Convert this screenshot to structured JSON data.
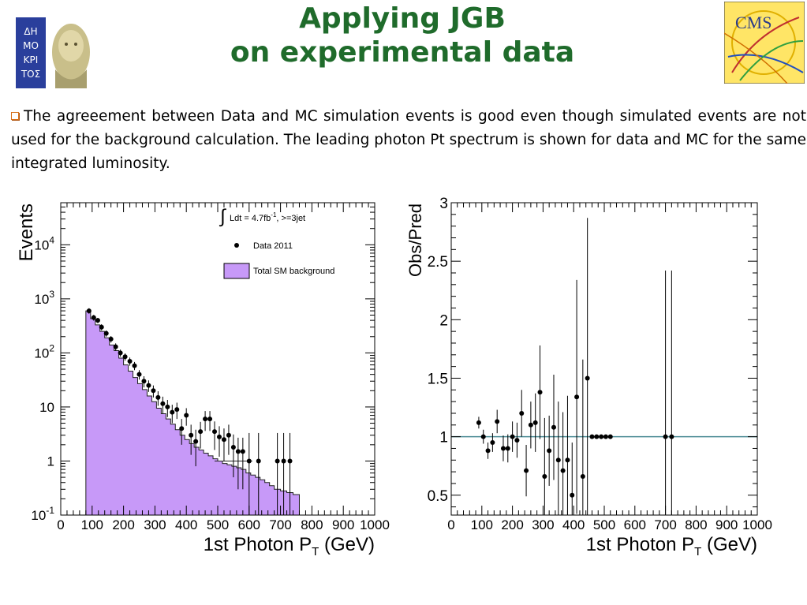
{
  "slide": {
    "title_line1": "Applying JGB",
    "title_line2": "on experimental data",
    "bullet": "The agreeement between Data and MC simulation events is good even though simulated events are not used for the background calculation. The leading photon Pt spectrum is shown for data and MC for the same integrated luminosity.",
    "logo_left_icon": "democritos-logo-icon",
    "logo_right_text": "CMS",
    "title_color": "#1f6b2b",
    "bullet_color": "#d6701a"
  },
  "chart_data": [
    {
      "type": "bar",
      "ylabel": "Events",
      "xlabel": "1st Photon P",
      "xlabel_sub": "T",
      "xlabel_unit": " (GeV)",
      "yscale": "log",
      "xlim": [
        0,
        1000
      ],
      "ylim": [
        0.1,
        60000
      ],
      "x_ticks": [
        "0",
        "100",
        "200",
        "300",
        "400",
        "500",
        "600",
        "700",
        "800",
        "900",
        "1000"
      ],
      "y_ticks": [
        {
          "base": "10",
          "exp": "-1",
          "v": 0.1
        },
        {
          "base": "1",
          "exp": "",
          "v": 1
        },
        {
          "base": "10",
          "exp": "",
          "v": 10
        },
        {
          "base": "10",
          "exp": "2",
          "v": 100
        },
        {
          "base": "10",
          "exp": "3",
          "v": 1000
        },
        {
          "base": "10",
          "exp": "4",
          "v": 10000
        }
      ],
      "legend": {
        "lumi_prefix": "Ldt = 4.7fb",
        "lumi_sup": "-1",
        "lumi_suffix": ", >=3jet",
        "data_label": "Data 2011",
        "bkg_label": "Total SM background"
      },
      "bkg_color": "#c799f8",
      "background_hist": {
        "bin_edges": [
          80,
          95,
          110,
          125,
          140,
          155,
          170,
          185,
          200,
          215,
          230,
          245,
          260,
          275,
          290,
          305,
          320,
          335,
          350,
          365,
          380,
          395,
          410,
          425,
          440,
          455,
          470,
          485,
          500,
          515,
          530,
          545,
          560,
          575,
          590,
          605,
          620,
          635,
          650,
          665,
          680,
          700,
          720,
          740,
          760
        ],
        "values": [
          600,
          430,
          330,
          250,
          190,
          140,
          110,
          80,
          60,
          46,
          35,
          27,
          21,
          16,
          12.5,
          9.5,
          7.5,
          6,
          4.8,
          3.8,
          3,
          2.5,
          2.1,
          1.8,
          1.6,
          1.4,
          1.25,
          1.1,
          1,
          0.9,
          0.85,
          0.8,
          0.75,
          0.7,
          0.6,
          0.55,
          0.5,
          0.45,
          0.4,
          0.35,
          0.3,
          0.28,
          0.26,
          0.24
        ]
      },
      "background_extra": {
        "bin_edges": [
          490,
          510,
          530,
          550,
          570,
          590,
          610,
          630,
          650,
          670,
          690,
          710,
          730,
          750
        ],
        "values": [
          1,
          1,
          1,
          1,
          1,
          1,
          0.1,
          0.1,
          0.1,
          0.1,
          0.1,
          0.1,
          0.1,
          0.1
        ]
      },
      "data_points": {
        "x": [
          90,
          105,
          118,
          130,
          145,
          160,
          175,
          190,
          205,
          220,
          235,
          250,
          265,
          280,
          295,
          310,
          325,
          340,
          355,
          370,
          385,
          400,
          415,
          430,
          445,
          460,
          475,
          490,
          505,
          520,
          535,
          550,
          565,
          580,
          600,
          630,
          690,
          710,
          730
        ],
        "y": [
          600,
          450,
          400,
          300,
          230,
          180,
          130,
          100,
          85,
          70,
          58,
          40,
          30,
          25,
          20,
          15,
          11.5,
          10,
          8,
          9,
          4,
          7,
          3,
          2.3,
          3.5,
          6,
          6,
          3.5,
          2.8,
          2.5,
          3,
          1.8,
          1.5,
          1.5,
          1,
          1,
          1,
          1,
          1
        ],
        "yerr_low": [
          70,
          55,
          45,
          40,
          30,
          25,
          20,
          15,
          13,
          12,
          10,
          8,
          7,
          6,
          5,
          4.5,
          4,
          3.5,
          3,
          3,
          2,
          2.5,
          1.7,
          1.5,
          1.8,
          2.4,
          2.4,
          1.9,
          1.6,
          1.5,
          1.7,
          1.3,
          1.2,
          1.2,
          0.9,
          0.9,
          0.9,
          0.9,
          0.9
        ],
        "yerr_high": [
          70,
          55,
          45,
          40,
          30,
          25,
          20,
          15,
          13,
          12,
          10,
          8,
          7,
          6,
          5,
          4.5,
          4,
          3.5,
          3,
          3,
          2,
          2.5,
          1.7,
          1.5,
          1.8,
          2.4,
          2.4,
          1.9,
          1.6,
          1.5,
          1.7,
          1.3,
          1.2,
          1.2,
          2.3,
          2.3,
          2.3,
          2.3,
          2.3
        ]
      }
    },
    {
      "type": "scatter",
      "ylabel": "Obs/Pred",
      "xlabel": "1st Photon P",
      "xlabel_sub": "T",
      "xlabel_unit": " (GeV)",
      "xlim": [
        0,
        1000
      ],
      "ylim": [
        0.33,
        3
      ],
      "x_ticks": [
        "0",
        "100",
        "200",
        "300",
        "400",
        "500",
        "600",
        "700",
        "800",
        "900",
        "1000"
      ],
      "y_ticks": [
        "0.5",
        "1",
        "1.5",
        "2",
        "2.5",
        "3"
      ],
      "reference_line": 1,
      "reference_color": "#4a8a94",
      "points": {
        "x": [
          90,
          105,
          120,
          135,
          150,
          170,
          185,
          200,
          215,
          230,
          245,
          260,
          275,
          290,
          305,
          320,
          335,
          350,
          365,
          380,
          395,
          410,
          430,
          445,
          460,
          475,
          490,
          505,
          520,
          700,
          720
        ],
        "y": [
          1.12,
          1.0,
          0.88,
          0.95,
          1.13,
          0.9,
          0.9,
          1.0,
          0.97,
          1.2,
          0.71,
          1.1,
          1.12,
          1.38,
          0.66,
          0.88,
          1.08,
          0.8,
          0.71,
          0.8,
          0.5,
          1.34,
          0.66,
          1.5,
          1.0,
          1.0,
          1.0,
          1.0,
          1.0,
          1.0,
          1.0
        ],
        "yerr": [
          0.05,
          0.06,
          0.07,
          0.08,
          0.1,
          0.11,
          0.12,
          0.13,
          0.15,
          0.2,
          0.22,
          0.2,
          0.25,
          0.4,
          0.5,
          0.3,
          0.45,
          0.5,
          0.5,
          0.55,
          0.45,
          1.0,
          1.0,
          1.37,
          0,
          0,
          0,
          0,
          0,
          1.42,
          1.42
        ]
      }
    }
  ]
}
